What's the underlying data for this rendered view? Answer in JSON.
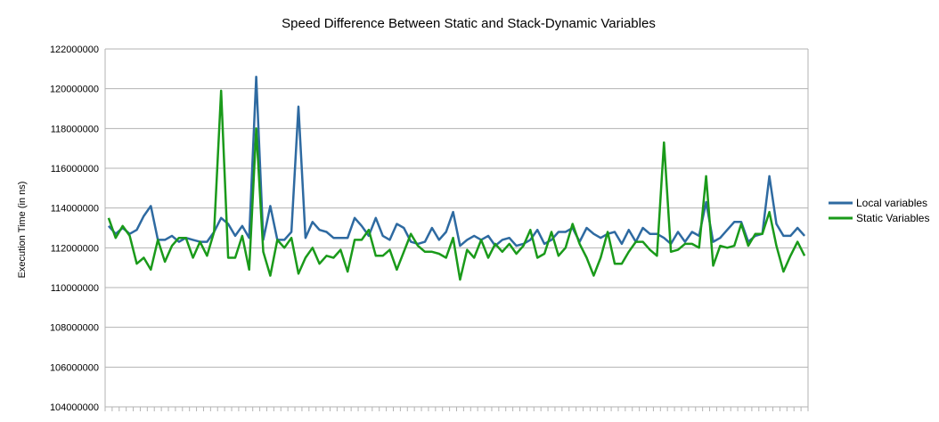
{
  "chart_data": {
    "type": "line",
    "title": "Speed Difference Between Static and Stack-Dynamic Variables",
    "xlabel": "",
    "ylabel": "Execution Time (in ns)",
    "ylim": [
      104000000,
      122000000
    ],
    "yticks": [
      "104000000",
      "106000000",
      "108000000",
      "110000000",
      "112000000",
      "114000000",
      "116000000",
      "118000000",
      "120000000",
      "122000000"
    ],
    "grid": true,
    "legend": "right",
    "n_points": 100,
    "series": [
      {
        "name": "Local variables",
        "color": "#2e6aa1",
        "values": [
          113100000,
          112700000,
          113000000,
          112700000,
          112900000,
          113600000,
          114100000,
          112400000,
          112400000,
          112600000,
          112300000,
          112500000,
          112400000,
          112300000,
          112300000,
          112800000,
          113500000,
          113200000,
          112600000,
          113100000,
          112500000,
          120600000,
          112400000,
          114100000,
          112400000,
          112400000,
          112800000,
          119100000,
          112500000,
          113300000,
          112900000,
          112800000,
          112500000,
          112500000,
          112500000,
          113500000,
          113100000,
          112600000,
          113500000,
          112600000,
          112400000,
          113200000,
          113000000,
          112300000,
          112200000,
          112300000,
          113000000,
          112400000,
          112800000,
          113800000,
          112100000,
          112400000,
          112600000,
          112400000,
          112600000,
          112100000,
          112400000,
          112500000,
          112100000,
          112200000,
          112400000,
          112900000,
          112200000,
          112400000,
          112800000,
          112800000,
          113000000,
          112300000,
          113000000,
          112700000,
          112500000,
          112700000,
          112800000,
          112200000,
          112900000,
          112300000,
          113000000,
          112700000,
          112700000,
          112500000,
          112200000,
          112800000,
          112300000,
          112800000,
          112600000,
          114300000,
          112300000,
          112500000,
          112900000,
          113300000,
          113300000,
          112300000,
          112600000,
          112700000,
          115600000,
          113200000,
          112600000,
          112600000,
          113000000,
          112600000
        ]
      },
      {
        "name": "Static Variables",
        "color": "#1a9a1a",
        "values": [
          113500000,
          112500000,
          113100000,
          112600000,
          111200000,
          111500000,
          110900000,
          112400000,
          111300000,
          112100000,
          112500000,
          112500000,
          111500000,
          112300000,
          111600000,
          112800000,
          119900000,
          111500000,
          111500000,
          112600000,
          110900000,
          118000000,
          111800000,
          110600000,
          112400000,
          112000000,
          112500000,
          110700000,
          111500000,
          112000000,
          111200000,
          111600000,
          111500000,
          111900000,
          110800000,
          112400000,
          112400000,
          112900000,
          111600000,
          111600000,
          111900000,
          110900000,
          111800000,
          112700000,
          112100000,
          111800000,
          111800000,
          111700000,
          111500000,
          112500000,
          110400000,
          111900000,
          111500000,
          112400000,
          111500000,
          112200000,
          111800000,
          112200000,
          111700000,
          112100000,
          112900000,
          111500000,
          111700000,
          112800000,
          111600000,
          112000000,
          113200000,
          112200000,
          111500000,
          110600000,
          111500000,
          112800000,
          111200000,
          111200000,
          111800000,
          112300000,
          112300000,
          111900000,
          111600000,
          117300000,
          111800000,
          111900000,
          112200000,
          112200000,
          112000000,
          115600000,
          111100000,
          112100000,
          112000000,
          112100000,
          113200000,
          112100000,
          112700000,
          112700000,
          113800000,
          112100000,
          110800000,
          111600000,
          112300000,
          111600000
        ]
      }
    ]
  }
}
